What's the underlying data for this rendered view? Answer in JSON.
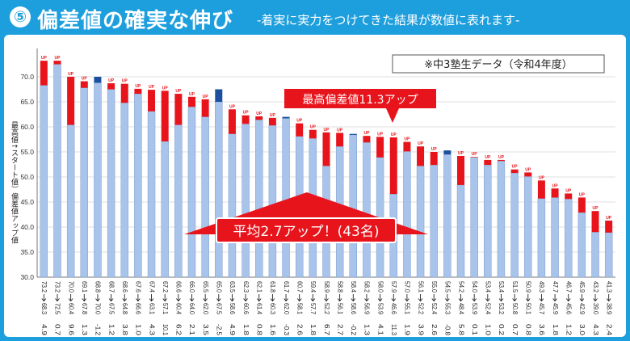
{
  "header": {
    "number": "⑤",
    "title": "偏差値の確実な伸び",
    "subtitle": "-着実に実力をつけてきた結果が数値に表れます-"
  },
  "chart_data": {
    "type": "bar",
    "ylabel": "最高値↑スタート値）偏差値アップ値",
    "ylim": [
      30,
      75
    ],
    "yticks": [
      "30.0",
      "35.0",
      "40.0",
      "45.0",
      "50.0",
      "55.0",
      "60.0",
      "65.0",
      "70.0"
    ],
    "legend_box": "※中3塾生データ（令和4年度）",
    "callout_max": "最高偏差値11.3アップ",
    "callout_avg": "平均2.7アップ！(43名)",
    "up_label": "UP",
    "series": [
      {
        "name": "最高値",
        "values": [
          73.2,
          73.2,
          70.0,
          69.1,
          68.8,
          68.7,
          68.6,
          67.6,
          67.4,
          67.2,
          66.6,
          66.0,
          65.5,
          65.0,
          63.5,
          62.3,
          62.1,
          61.8,
          61.7,
          60.7,
          59.4,
          58.9,
          58.8,
          58.4,
          58.2,
          58.0,
          57.9,
          57.0,
          56.1,
          55.0,
          54.5,
          54.2,
          54.0,
          53.4,
          53.4,
          51.5,
          50.9,
          49.3,
          47.7,
          46.7,
          45.9,
          43.2,
          41.3
        ]
      },
      {
        "name": "スタート値",
        "values": [
          68.3,
          72.5,
          60.4,
          67.8,
          70.0,
          67.5,
          64.8,
          66.6,
          63.1,
          57.1,
          60.4,
          64.0,
          62.0,
          67.5,
          58.6,
          60.6,
          61.4,
          60.3,
          62.0,
          58.1,
          57.7,
          52.2,
          56.1,
          58.6,
          56.9,
          53.9,
          46.6,
          55.1,
          52.2,
          52.4,
          55.3,
          48.4,
          53.9,
          52.4,
          53.2,
          50.8,
          50.1,
          45.7,
          45.9,
          45.6,
          42.9,
          39.0,
          38.9
        ]
      }
    ],
    "top_labels": [
      "73.2",
      "73.2",
      "70.0",
      "69.1",
      "68.8",
      "68.7",
      "68.6",
      "67.6",
      "67.4",
      "67.2",
      "66.6",
      "66.0",
      "65.5",
      "65.0",
      "63.5",
      "62.3",
      "62.1",
      "61.8",
      "61.7",
      "60.7",
      "59.4",
      "58.9",
      "58.8",
      "58.4",
      "58.2",
      "58.0",
      "57.9",
      "57.0",
      "56.1",
      "55.0",
      "54.5",
      "54.2",
      "54.0",
      "53.4",
      "53.4",
      "51.5",
      "50.9",
      "49.3",
      "47.7",
      "46.7",
      "45.9",
      "43.2",
      "41.3"
    ],
    "start_labels": [
      "68.3",
      "72.5",
      "60.4",
      "67.8",
      "70.0",
      "67.5",
      "64.8",
      "66.6",
      "63.1",
      "57.1",
      "60.4",
      "64.0",
      "62.0",
      "67.5",
      "58.6",
      "60.6",
      "61.4",
      "60.3",
      "62.0",
      "58.1",
      "57.7",
      "52.2",
      "56.1",
      "58.6",
      "56.9",
      "53.9",
      "46.6",
      "55.1",
      "52.2",
      "52.4",
      "55.3",
      "48.4",
      "53.9",
      "52.4",
      "53.2",
      "50.8",
      "50.1",
      "45.7",
      "45.9",
      "45.6",
      "42.9",
      "39.0",
      "38.9"
    ],
    "diff_labels": [
      "4.9",
      "0.7",
      "9.6",
      "1.3",
      "-1.2",
      "1.2",
      "3.8",
      "1.0",
      "4.3",
      "10.1",
      "6.2",
      "2.1",
      "3.5",
      "-2.5",
      "4.9",
      "1.8",
      "0.8",
      "1.6",
      "-0.3",
      "2.6",
      "1.8",
      "6.7",
      "2.7",
      "-0.2",
      "1.3",
      "4.1",
      "11.3",
      "1.9",
      "3.9",
      "2.6",
      "-0.8",
      "5.8",
      "0.1",
      "1.0",
      "0.2",
      "0.7",
      "0.8",
      "3.6",
      "1.8",
      "1.2",
      "3.0",
      "4.3",
      "2.4"
    ],
    "colors": {
      "base": "#a8c4ea",
      "base_edge": "#6d8fc7",
      "up": "#e8141c",
      "down": "#1c4fa0",
      "grid": "#bfbfbf",
      "frame": "#1e9fdd"
    }
  }
}
